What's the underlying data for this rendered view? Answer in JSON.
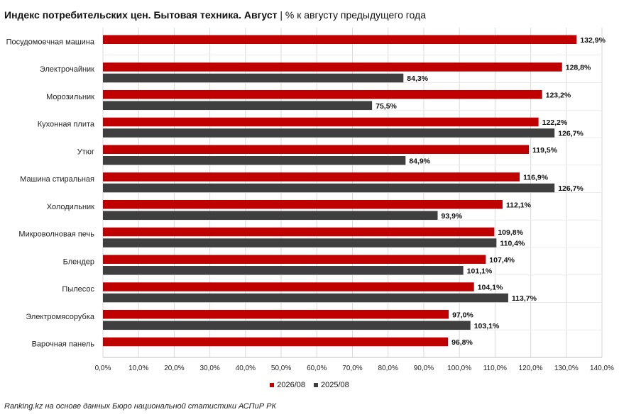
{
  "title_bold": "Индекс потребительских цен. Бытовая техника. Август",
  "title_sep": "|",
  "title_rest": "% к августу предыдущего года",
  "source": "Ranking.kz на основе данных Бюро национальной статистики АСПиР РК",
  "colors": {
    "series_2026": "#c00000",
    "series_2025": "#3f3f3f",
    "grid": "#d9d9d9"
  },
  "chart_data": {
    "type": "bar",
    "orientation": "horizontal",
    "categories": [
      "Посудомоечная машина",
      "Электрочайник",
      "Морозильник",
      "Кухонная плита",
      "Утюг",
      "Машина стиральная",
      "Холодильник",
      "Микроволновая печь",
      "Блендер",
      "Пылесос",
      "Электромясорубка",
      "Варочная панель"
    ],
    "series": [
      {
        "name": "2026/08",
        "values": [
          132.9,
          128.8,
          123.2,
          122.2,
          119.5,
          116.9,
          112.1,
          109.8,
          107.4,
          104.1,
          97.0,
          96.8
        ],
        "labels": [
          "132,9%",
          "128,8%",
          "123,2%",
          "122,2%",
          "119,5%",
          "116,9%",
          "112,1%",
          "109,8%",
          "107,4%",
          "104,1%",
          "97,0%",
          "96,8%"
        ]
      },
      {
        "name": "2025/08",
        "values": [
          null,
          84.3,
          75.5,
          126.7,
          84.9,
          126.7,
          93.9,
          110.4,
          101.1,
          113.7,
          103.1,
          null
        ],
        "labels": [
          "",
          "84,3%",
          "75,5%",
          "126,7%",
          "84,9%",
          "126,7%",
          "93,9%",
          "110,4%",
          "101,1%",
          "113,7%",
          "103,1%",
          ""
        ]
      }
    ],
    "xlim": [
      0,
      140
    ],
    "xticks": [
      0,
      10,
      20,
      30,
      40,
      50,
      60,
      70,
      80,
      90,
      100,
      110,
      120,
      130,
      140
    ],
    "xtick_labels": [
      "0,0%",
      "10,0%",
      "20,0%",
      "30,0%",
      "40,0%",
      "50,0%",
      "60,0%",
      "70,0%",
      "80,0%",
      "90,0%",
      "100,0%",
      "110,0%",
      "120,0%",
      "130,0%",
      "140,0%"
    ],
    "grid": true,
    "legend_position": "bottom"
  }
}
